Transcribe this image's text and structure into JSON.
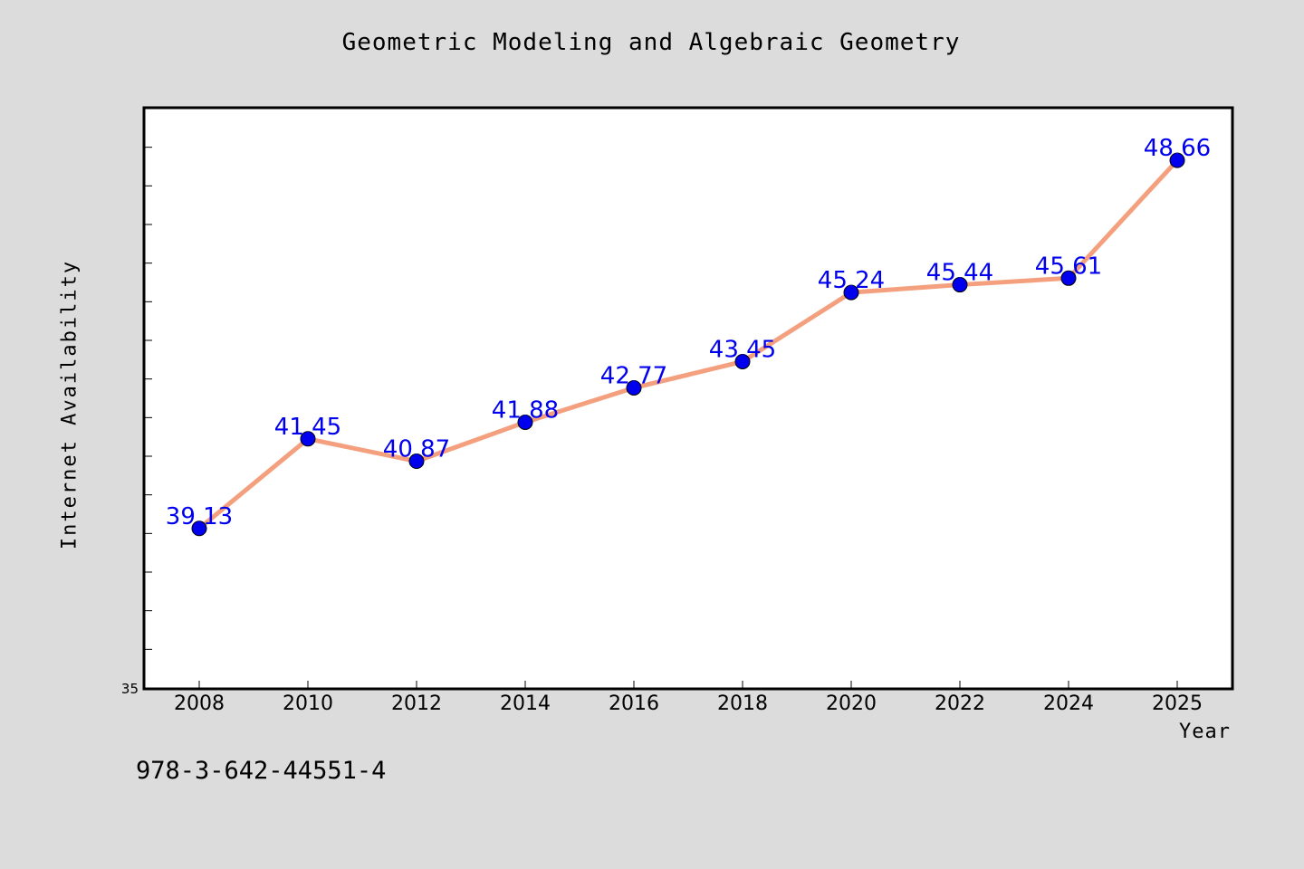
{
  "chart_data": {
    "type": "line",
    "title": "Geometric Modeling and Algebraic Geometry",
    "xlabel": "Year",
    "ylabel": "Internet Availability",
    "categories": [
      "2008",
      "2010",
      "2012",
      "2014",
      "2016",
      "2018",
      "2020",
      "2022",
      "2024",
      "2025"
    ],
    "series": [
      {
        "values": [
          39.13,
          41.45,
          40.87,
          41.88,
          42.77,
          43.45,
          45.24,
          45.44,
          45.61,
          48.66
        ],
        "line_color": "#f4a07e",
        "marker_color": "#0000ee",
        "label_color": "#0000ee"
      }
    ],
    "data_labels": [
      "39.13",
      "41.45",
      "40.87",
      "41.88",
      "42.77",
      "43.45",
      "45.24",
      "45.44",
      "45.61",
      "48.66"
    ],
    "ylim": [
      35,
      50
    ],
    "y_tick_labels": [
      "35"
    ],
    "grid": false,
    "legend": "none"
  },
  "footer": {
    "isbn": "978-3-642-44551-4"
  },
  "colors": {
    "background": "#dcdcdc",
    "plot_background": "#ffffff",
    "axes": "#000000"
  }
}
